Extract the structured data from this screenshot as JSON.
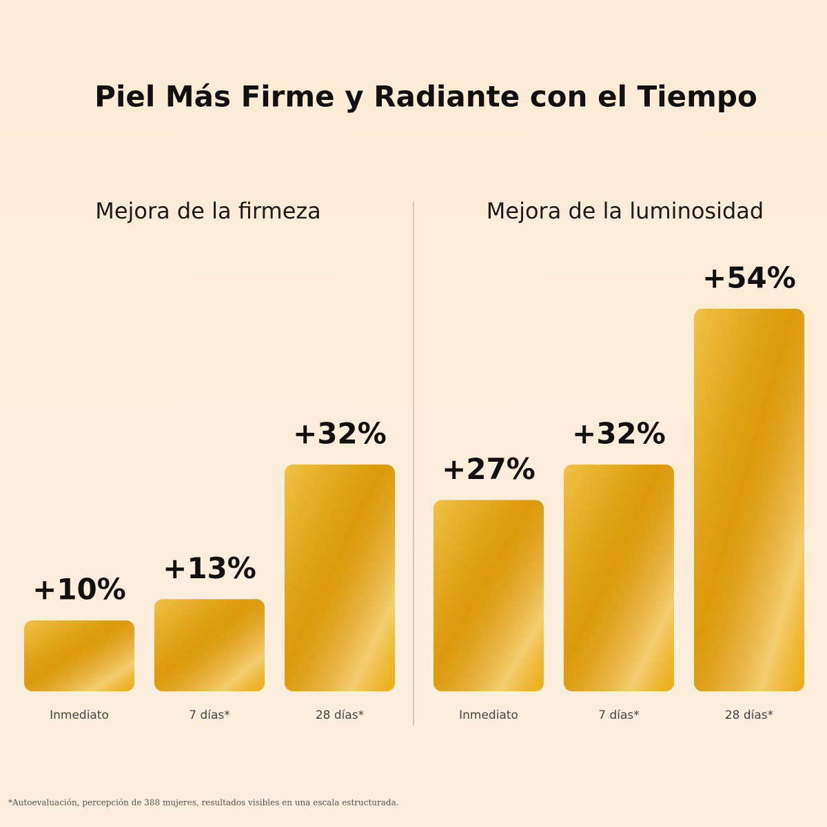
{
  "title": "Piel Más Firme y Radiante con el Tiempo",
  "footnote": "*Autoevaluación, percepción de 388 mujeres, resultados visibles en una escala estructurada.",
  "chart_data": [
    {
      "type": "bar",
      "title": "Mejora de la firmeza",
      "categories": [
        "Inmediato",
        "7 días*",
        "28 días*"
      ],
      "values": [
        10,
        13,
        32
      ],
      "value_labels": [
        "+10%",
        "+13%",
        "+32%"
      ],
      "color": "#e9a90f"
    },
    {
      "type": "bar",
      "title": "Mejora de la luminosidad",
      "categories": [
        "Inmediato",
        "7 días*",
        "28 días*"
      ],
      "values": [
        27,
        32,
        54
      ],
      "value_labels": [
        "+27%",
        "+32%",
        "+54%"
      ],
      "color": "#e9a90f"
    }
  ]
}
